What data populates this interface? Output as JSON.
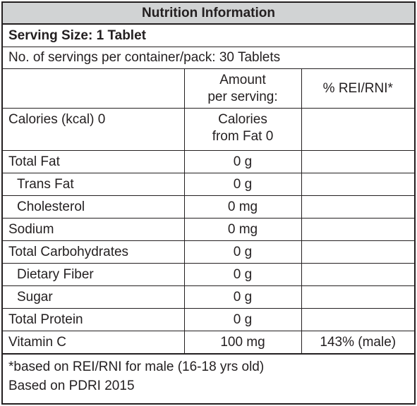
{
  "title": "Nutrition Information",
  "serving_size": "Serving Size: 1 Tablet",
  "servings_per_container": "No. of servings per container/pack: 30 Tablets",
  "header": {
    "amount_line1": "Amount",
    "amount_line2": "per serving:",
    "rei": "% REI/RNI*"
  },
  "calories": {
    "label": "Calories (kcal) 0",
    "from_fat_line1": "Calories",
    "from_fat_line2": "from Fat 0"
  },
  "nutrients": [
    {
      "name": "Total Fat",
      "amount": "0 g",
      "rei": ""
    },
    {
      "name": "Trans Fat",
      "amount": "0 g",
      "rei": ""
    },
    {
      "name": "Cholesterol",
      "amount": "0 mg",
      "rei": ""
    },
    {
      "name": "Sodium",
      "amount": "0 mg",
      "rei": ""
    },
    {
      "name": "Total Carbohydrates",
      "amount": "0 g",
      "rei": ""
    },
    {
      "name": "Dietary Fiber",
      "amount": "0 g",
      "rei": ""
    },
    {
      "name": "Sugar",
      "amount": "0 g",
      "rei": ""
    },
    {
      "name": "Total Protein",
      "amount": "0 g",
      "rei": ""
    },
    {
      "name": "Vitamin C",
      "amount": "100 mg",
      "rei": "143% (male)"
    }
  ],
  "footnote_line1": "*based on REI/RNI for male (16-18 yrs old)",
  "footnote_line2": "Based on PDRI 2015",
  "colors": {
    "border": "#231f20",
    "title_bg": "#d1d3d4"
  }
}
